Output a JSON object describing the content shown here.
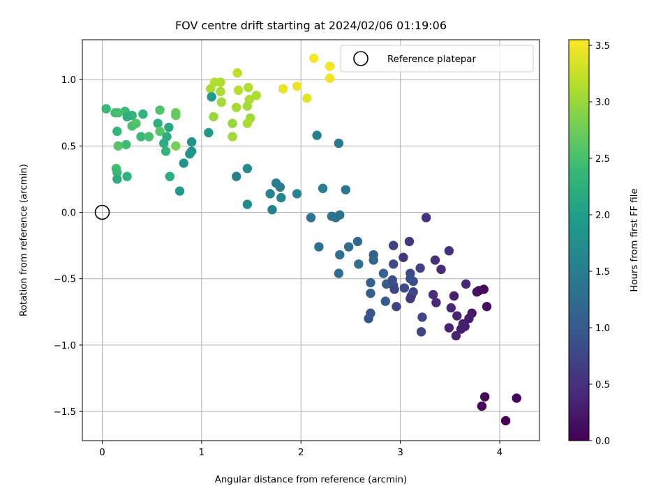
{
  "chart_data": {
    "type": "scatter",
    "title": "FOV centre drift starting at 2024/02/06 01:19:06",
    "xlabel": "Angular distance from reference (arcmin)",
    "ylabel": "Rotation from reference (arcmin)",
    "colorbar_label": "Hours from first FF file",
    "xlim": [
      -0.2,
      4.4
    ],
    "ylim": [
      -1.72,
      1.3
    ],
    "clim": [
      0.0,
      3.55
    ],
    "x_ticks": [
      0,
      1,
      2,
      3,
      4
    ],
    "x_tick_labels": [
      "0",
      "1",
      "2",
      "3",
      "4"
    ],
    "y_ticks": [
      1.0,
      0.5,
      0.0,
      -0.5,
      -1.0,
      -1.5
    ],
    "y_tick_labels": [
      "1.0",
      "0.5",
      "0.0",
      "−0.5",
      "−1.0",
      "−1.5"
    ],
    "c_ticks": [
      0.0,
      0.5,
      1.0,
      1.5,
      2.0,
      2.5,
      3.0,
      3.5
    ],
    "c_tick_labels": [
      "0.0",
      "0.5",
      "1.0",
      "1.5",
      "2.0",
      "2.5",
      "3.0",
      "3.5"
    ],
    "grid": true,
    "colormap": "viridis",
    "legend": {
      "position": "top-right",
      "entries": [
        "Reference platepar"
      ]
    },
    "reference_point": {
      "x": 0.0,
      "y": 0.0
    },
    "points": [
      {
        "x": 2.13,
        "y": 1.16,
        "t": 3.52
      },
      {
        "x": 2.29,
        "y": 1.1,
        "t": 3.5
      },
      {
        "x": 2.29,
        "y": 1.01,
        "t": 3.48
      },
      {
        "x": 1.96,
        "y": 0.95,
        "t": 3.45
      },
      {
        "x": 1.82,
        "y": 0.93,
        "t": 3.42
      },
      {
        "x": 2.06,
        "y": 0.86,
        "t": 3.4
      },
      {
        "x": 1.36,
        "y": 1.05,
        "t": 3.2
      },
      {
        "x": 1.13,
        "y": 0.98,
        "t": 3.15
      },
      {
        "x": 1.19,
        "y": 0.98,
        "t": 3.12
      },
      {
        "x": 1.09,
        "y": 0.93,
        "t": 3.1
      },
      {
        "x": 1.19,
        "y": 0.91,
        "t": 3.1
      },
      {
        "x": 1.37,
        "y": 0.92,
        "t": 3.18
      },
      {
        "x": 1.47,
        "y": 0.94,
        "t": 3.15
      },
      {
        "x": 1.55,
        "y": 0.88,
        "t": 3.12
      },
      {
        "x": 1.48,
        "y": 0.85,
        "t": 3.1
      },
      {
        "x": 1.2,
        "y": 0.83,
        "t": 3.05
      },
      {
        "x": 1.35,
        "y": 0.79,
        "t": 3.08
      },
      {
        "x": 1.46,
        "y": 0.8,
        "t": 3.05
      },
      {
        "x": 1.12,
        "y": 0.72,
        "t": 3.0
      },
      {
        "x": 1.49,
        "y": 0.71,
        "t": 3.02
      },
      {
        "x": 1.31,
        "y": 0.67,
        "t": 3.0
      },
      {
        "x": 1.46,
        "y": 0.67,
        "t": 3.1
      },
      {
        "x": 1.31,
        "y": 0.57,
        "t": 3.05
      },
      {
        "x": 0.04,
        "y": 0.78,
        "t": 2.4
      },
      {
        "x": 0.13,
        "y": 0.75,
        "t": 2.45
      },
      {
        "x": 0.23,
        "y": 0.76,
        "t": 2.4
      },
      {
        "x": 0.3,
        "y": 0.73,
        "t": 2.3
      },
      {
        "x": 0.25,
        "y": 0.72,
        "t": 2.25
      },
      {
        "x": 0.3,
        "y": 0.65,
        "t": 2.5
      },
      {
        "x": 0.34,
        "y": 0.67,
        "t": 2.55
      },
      {
        "x": 0.41,
        "y": 0.74,
        "t": 2.3
      },
      {
        "x": 0.15,
        "y": 0.61,
        "t": 2.35
      },
      {
        "x": 0.16,
        "y": 0.5,
        "t": 2.6
      },
      {
        "x": 0.24,
        "y": 0.51,
        "t": 2.45
      },
      {
        "x": 0.16,
        "y": 0.75,
        "t": 2.5
      },
      {
        "x": 0.58,
        "y": 0.77,
        "t": 2.55
      },
      {
        "x": 0.74,
        "y": 0.75,
        "t": 2.75
      },
      {
        "x": 0.74,
        "y": 0.73,
        "t": 2.7
      },
      {
        "x": 0.56,
        "y": 0.67,
        "t": 2.25
      },
      {
        "x": 0.67,
        "y": 0.64,
        "t": 2.15
      },
      {
        "x": 0.58,
        "y": 0.61,
        "t": 2.6
      },
      {
        "x": 0.39,
        "y": 0.57,
        "t": 2.4
      },
      {
        "x": 0.47,
        "y": 0.57,
        "t": 2.5
      },
      {
        "x": 0.65,
        "y": 0.57,
        "t": 2.2
      },
      {
        "x": 0.62,
        "y": 0.52,
        "t": 2.2
      },
      {
        "x": 0.74,
        "y": 0.5,
        "t": 2.8
      },
      {
        "x": 0.64,
        "y": 0.46,
        "t": 2.35
      },
      {
        "x": 0.14,
        "y": 0.33,
        "t": 2.45
      },
      {
        "x": 0.15,
        "y": 0.3,
        "t": 2.4
      },
      {
        "x": 0.25,
        "y": 0.27,
        "t": 2.3
      },
      {
        "x": 0.15,
        "y": 0.25,
        "t": 2.2
      },
      {
        "x": 0.68,
        "y": 0.27,
        "t": 2.2
      },
      {
        "x": 1.1,
        "y": 0.87,
        "t": 1.95
      },
      {
        "x": 1.07,
        "y": 0.6,
        "t": 1.9
      },
      {
        "x": 0.9,
        "y": 0.53,
        "t": 1.8
      },
      {
        "x": 0.9,
        "y": 0.46,
        "t": 1.8
      },
      {
        "x": 0.88,
        "y": 0.44,
        "t": 1.85
      },
      {
        "x": 0.82,
        "y": 0.37,
        "t": 1.85
      },
      {
        "x": 0.78,
        "y": 0.16,
        "t": 1.9
      },
      {
        "x": 1.35,
        "y": 0.27,
        "t": 1.55
      },
      {
        "x": 1.46,
        "y": 0.33,
        "t": 1.7
      },
      {
        "x": 1.46,
        "y": 0.06,
        "t": 1.7
      },
      {
        "x": 2.16,
        "y": 0.58,
        "t": 1.5
      },
      {
        "x": 2.38,
        "y": 0.52,
        "t": 1.45
      },
      {
        "x": 1.75,
        "y": 0.22,
        "t": 1.5
      },
      {
        "x": 1.79,
        "y": 0.19,
        "t": 1.5
      },
      {
        "x": 1.69,
        "y": 0.14,
        "t": 1.6
      },
      {
        "x": 1.8,
        "y": 0.11,
        "t": 1.6
      },
      {
        "x": 1.96,
        "y": 0.14,
        "t": 1.6
      },
      {
        "x": 1.71,
        "y": 0.02,
        "t": 1.55
      },
      {
        "x": 2.22,
        "y": 0.18,
        "t": 1.5
      },
      {
        "x": 2.45,
        "y": 0.17,
        "t": 1.45
      },
      {
        "x": 2.1,
        "y": -0.04,
        "t": 1.4
      },
      {
        "x": 2.31,
        "y": -0.03,
        "t": 1.4
      },
      {
        "x": 2.35,
        "y": -0.04,
        "t": 1.3
      },
      {
        "x": 2.39,
        "y": -0.02,
        "t": 1.35
      },
      {
        "x": 2.18,
        "y": -0.26,
        "t": 1.3
      },
      {
        "x": 2.39,
        "y": -0.32,
        "t": 1.3
      },
      {
        "x": 2.48,
        "y": -0.26,
        "t": 1.25
      },
      {
        "x": 2.57,
        "y": -0.22,
        "t": 1.2
      },
      {
        "x": 2.38,
        "y": -0.46,
        "t": 1.25
      },
      {
        "x": 2.58,
        "y": -0.39,
        "t": 1.3
      },
      {
        "x": 2.73,
        "y": -0.32,
        "t": 1.1
      },
      {
        "x": 2.73,
        "y": -0.36,
        "t": 1.15
      },
      {
        "x": 2.83,
        "y": -0.46,
        "t": 1.1
      },
      {
        "x": 2.7,
        "y": -0.53,
        "t": 1.1
      },
      {
        "x": 2.86,
        "y": -0.54,
        "t": 1.05
      },
      {
        "x": 2.7,
        "y": -0.61,
        "t": 1.05
      },
      {
        "x": 2.85,
        "y": -0.67,
        "t": 1.0
      },
      {
        "x": 2.7,
        "y": -0.76,
        "t": 0.95
      },
      {
        "x": 2.68,
        "y": -0.8,
        "t": 0.95
      },
      {
        "x": 2.93,
        "y": -0.25,
        "t": 0.7
      },
      {
        "x": 3.09,
        "y": -0.22,
        "t": 0.55
      },
      {
        "x": 3.03,
        "y": -0.34,
        "t": 0.55
      },
      {
        "x": 2.93,
        "y": -0.39,
        "t": 0.8
      },
      {
        "x": 3.1,
        "y": -0.46,
        "t": 0.8
      },
      {
        "x": 3.2,
        "y": -0.42,
        "t": 0.7
      },
      {
        "x": 2.92,
        "y": -0.51,
        "t": 0.85
      },
      {
        "x": 3.1,
        "y": -0.5,
        "t": 0.9
      },
      {
        "x": 3.13,
        "y": -0.52,
        "t": 0.85
      },
      {
        "x": 2.93,
        "y": -0.55,
        "t": 0.9
      },
      {
        "x": 2.94,
        "y": -0.58,
        "t": 0.75
      },
      {
        "x": 3.04,
        "y": -0.57,
        "t": 0.8
      },
      {
        "x": 3.13,
        "y": -0.6,
        "t": 0.75
      },
      {
        "x": 3.11,
        "y": -0.63,
        "t": 0.8
      },
      {
        "x": 3.1,
        "y": -0.65,
        "t": 0.6
      },
      {
        "x": 2.96,
        "y": -0.71,
        "t": 0.7
      },
      {
        "x": 3.22,
        "y": -0.79,
        "t": 0.75
      },
      {
        "x": 3.21,
        "y": -0.9,
        "t": 0.75
      },
      {
        "x": 3.26,
        "y": -0.04,
        "t": 0.5
      },
      {
        "x": 3.35,
        "y": -0.36,
        "t": 0.45
      },
      {
        "x": 3.49,
        "y": -0.29,
        "t": 0.5
      },
      {
        "x": 3.41,
        "y": -0.43,
        "t": 0.45
      },
      {
        "x": 3.33,
        "y": -0.62,
        "t": 0.45
      },
      {
        "x": 3.36,
        "y": -0.68,
        "t": 0.4
      },
      {
        "x": 3.54,
        "y": -0.63,
        "t": 0.3
      },
      {
        "x": 3.51,
        "y": -0.72,
        "t": 0.4
      },
      {
        "x": 3.57,
        "y": -0.78,
        "t": 0.35
      },
      {
        "x": 3.66,
        "y": -0.54,
        "t": 0.4
      },
      {
        "x": 3.77,
        "y": -0.6,
        "t": 0.15
      },
      {
        "x": 3.79,
        "y": -0.59,
        "t": 0.15
      },
      {
        "x": 3.84,
        "y": -0.58,
        "t": 0.1
      },
      {
        "x": 3.87,
        "y": -0.71,
        "t": 0.15
      },
      {
        "x": 3.72,
        "y": -0.76,
        "t": 0.25
      },
      {
        "x": 3.69,
        "y": -0.8,
        "t": 0.25
      },
      {
        "x": 3.63,
        "y": -0.84,
        "t": 0.3
      },
      {
        "x": 3.65,
        "y": -0.86,
        "t": 0.3
      },
      {
        "x": 3.61,
        "y": -0.88,
        "t": 0.3
      },
      {
        "x": 3.49,
        "y": -0.87,
        "t": 0.35
      },
      {
        "x": 3.56,
        "y": -0.93,
        "t": 0.35
      },
      {
        "x": 3.82,
        "y": -1.46,
        "t": 0.05
      },
      {
        "x": 3.85,
        "y": -1.39,
        "t": 0.05
      },
      {
        "x": 4.17,
        "y": -1.4,
        "t": 0.03
      },
      {
        "x": 4.06,
        "y": -1.57,
        "t": 0.0
      }
    ]
  }
}
